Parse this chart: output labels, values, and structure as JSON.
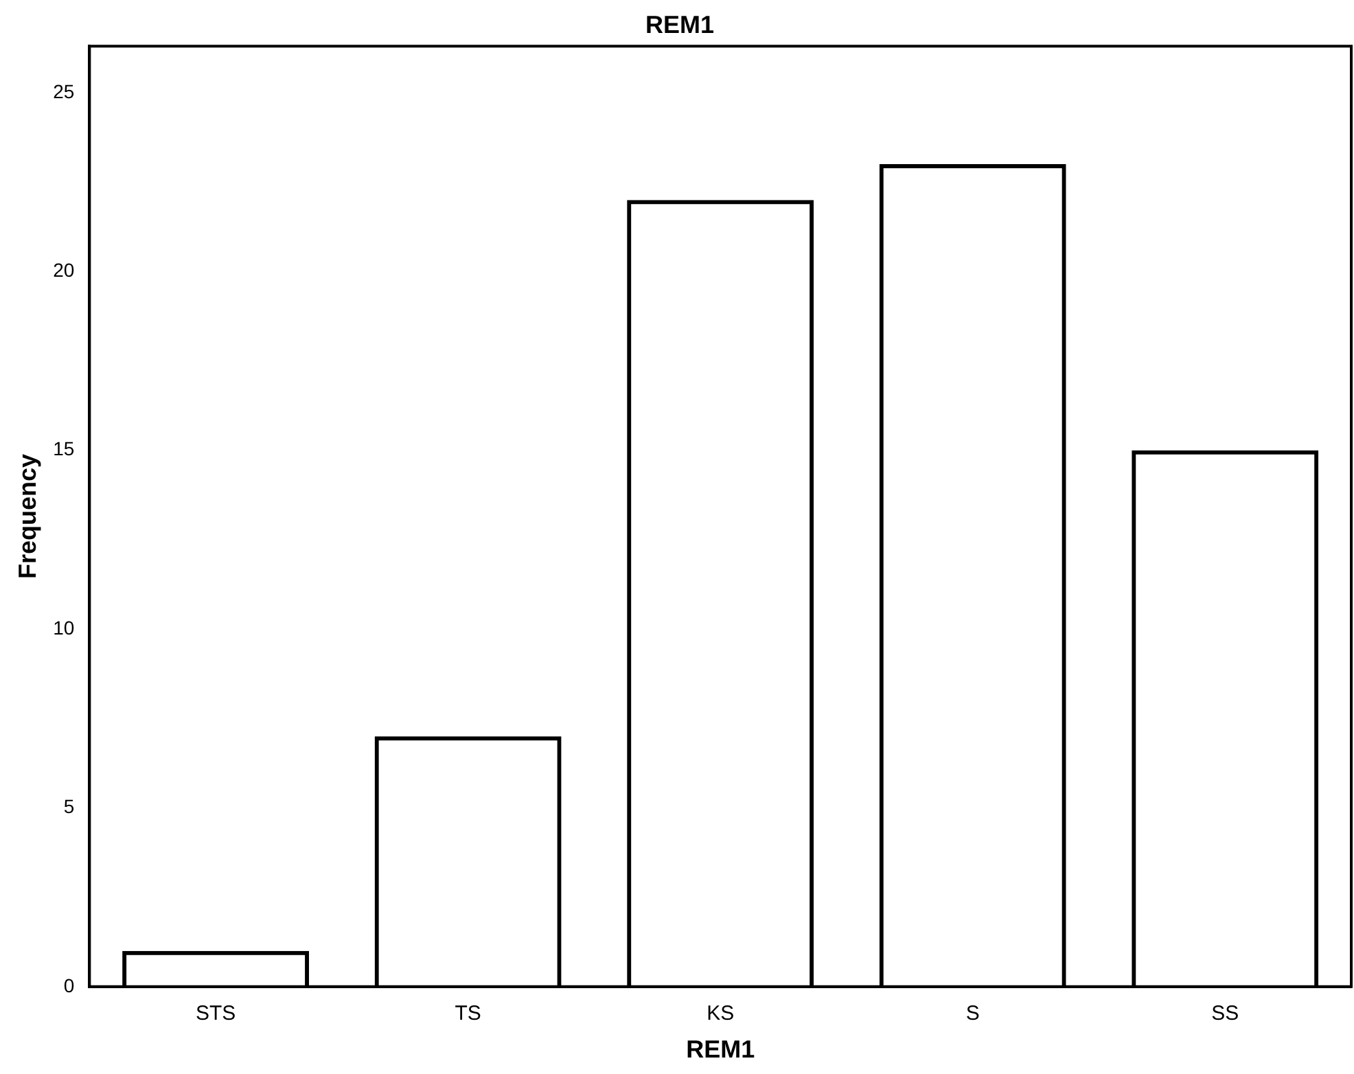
{
  "chart_data": {
    "type": "bar",
    "title": "REM1",
    "xlabel": "REM1",
    "ylabel": "Frequency",
    "categories": [
      "STS",
      "TS",
      "KS",
      "S",
      "SS"
    ],
    "values": [
      1,
      7,
      22,
      23,
      15
    ],
    "color": "#000000",
    "ylim": [
      0,
      26.3
    ],
    "yticks": [
      0,
      5,
      10,
      15,
      20,
      25
    ],
    "grid": false,
    "legend": false
  }
}
